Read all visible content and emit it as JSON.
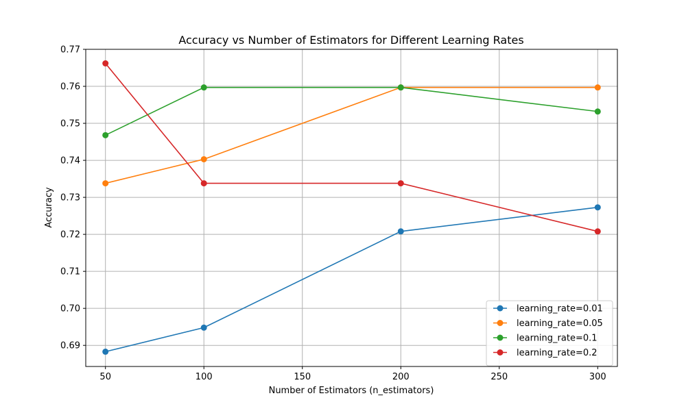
{
  "chart_data": {
    "type": "line",
    "title": "Accuracy vs Number of Estimators for Different Learning Rates",
    "xlabel": "Number of Estimators (n_estimators)",
    "ylabel": "Accuracy",
    "x": [
      50,
      100,
      200,
      300
    ],
    "xlim": [
      40,
      310
    ],
    "ylim": [
      0.6843,
      0.77
    ],
    "xticks": [
      50,
      100,
      150,
      200,
      250,
      300
    ],
    "yticks": [
      0.69,
      0.7,
      0.71,
      0.72,
      0.73,
      0.74,
      0.75,
      0.76,
      0.77
    ],
    "xtick_labels": [
      "50",
      "100",
      "150",
      "200",
      "250",
      "300"
    ],
    "ytick_labels": [
      "0.69",
      "0.70",
      "0.71",
      "0.72",
      "0.73",
      "0.74",
      "0.75",
      "0.76",
      "0.77"
    ],
    "grid": true,
    "legend_position": "lower-right",
    "series": [
      {
        "name": "learning_rate=0.01",
        "color": "#1f77b4",
        "values": [
          0.6883,
          0.6948,
          0.7208,
          0.7273
        ]
      },
      {
        "name": "learning_rate=0.05",
        "color": "#ff7f0e",
        "values": [
          0.7338,
          0.7403,
          0.7597,
          0.7597
        ]
      },
      {
        "name": "learning_rate=0.1",
        "color": "#2ca02c",
        "values": [
          0.7468,
          0.7597,
          0.7597,
          0.7532
        ]
      },
      {
        "name": "learning_rate=0.2",
        "color": "#d62728",
        "values": [
          0.7662,
          0.7338,
          0.7338,
          0.7208
        ]
      }
    ]
  }
}
